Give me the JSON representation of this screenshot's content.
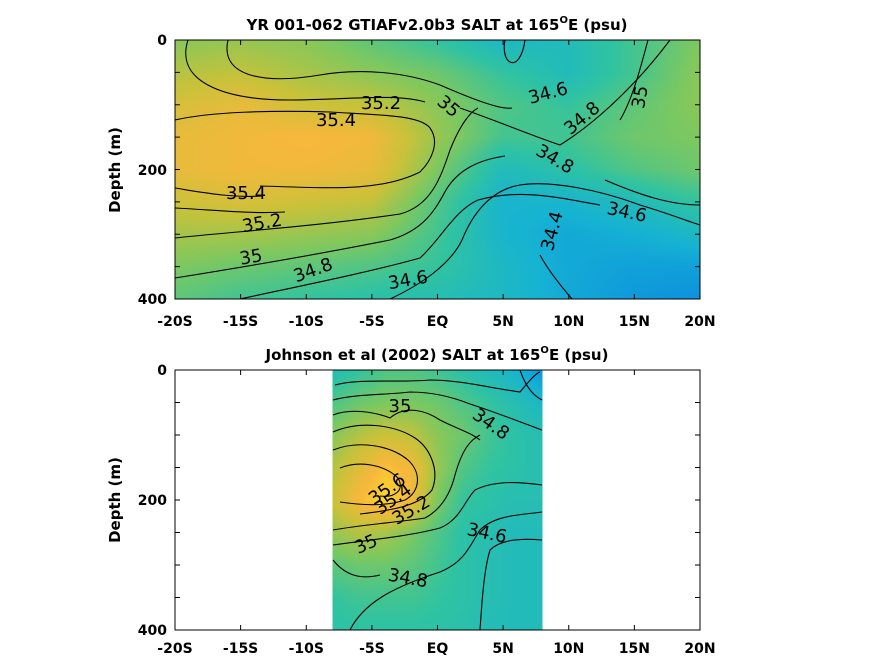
{
  "chart_data": [
    {
      "type": "heatmap",
      "title": "YR 001-062 GTIAFv2.0b3 SALT at 165",
      "title_sup": "O",
      "title_suffix": "E (psu)",
      "xlabel": "",
      "ylabel": "Depth (m)",
      "x_ticks": [
        "-20S",
        "-15S",
        "-10S",
        "-5S",
        "EQ",
        "5N",
        "10N",
        "15N",
        "20N"
      ],
      "y_ticks": [
        "0",
        "200",
        "400"
      ],
      "xlim": [
        -20,
        20
      ],
      "ylim": [
        0,
        400
      ],
      "data_extent": [
        -20,
        20
      ],
      "y_nodes": [
        0,
        50,
        100,
        150,
        200,
        250,
        300,
        350,
        400
      ],
      "x_nodes": [
        -20,
        -15,
        -10,
        -5,
        0,
        5,
        10,
        15,
        20
      ],
      "salinity": [
        [
          35.05,
          35.1,
          35.05,
          34.9,
          34.75,
          34.55,
          34.6,
          34.8,
          35.0
        ],
        [
          35.2,
          35.25,
          35.15,
          35.05,
          34.95,
          34.75,
          34.6,
          34.8,
          35.05
        ],
        [
          35.35,
          35.45,
          35.3,
          35.25,
          35.05,
          34.85,
          34.75,
          34.9,
          35.05
        ],
        [
          35.45,
          35.5,
          35.55,
          35.5,
          35.1,
          34.8,
          34.8,
          34.95,
          35.0
        ],
        [
          35.45,
          35.5,
          35.5,
          35.45,
          35.0,
          34.6,
          34.7,
          34.85,
          34.95
        ],
        [
          35.3,
          35.35,
          35.3,
          35.25,
          34.85,
          34.5,
          34.5,
          34.6,
          34.75
        ],
        [
          35.15,
          35.15,
          35.1,
          35.05,
          34.8,
          34.5,
          34.4,
          34.45,
          34.55
        ],
        [
          35.0,
          34.95,
          34.9,
          34.85,
          34.75,
          34.55,
          34.4,
          34.35,
          34.35
        ],
        [
          34.9,
          34.8,
          34.75,
          34.7,
          34.65,
          34.55,
          34.4,
          34.3,
          34.25
        ]
      ],
      "contour_labels": [
        "35.2",
        "35.4",
        "35",
        "34.6",
        "34.8",
        "35",
        "34.8",
        "35.4",
        "35.2",
        "34.6",
        "34.4",
        "35",
        "34.8",
        "34.6"
      ]
    },
    {
      "type": "heatmap",
      "title": "Johnson et al (2002) SALT at 165",
      "title_sup": "O",
      "title_suffix": "E (psu)",
      "xlabel": "",
      "ylabel": "Depth (m)",
      "x_ticks": [
        "-20S",
        "-15S",
        "-10S",
        "-5S",
        "EQ",
        "5N",
        "10N",
        "15N",
        "20N"
      ],
      "y_ticks": [
        "0",
        "200",
        "400"
      ],
      "xlim": [
        -20,
        20
      ],
      "ylim": [
        0,
        400
      ],
      "data_extent": [
        -8,
        8
      ],
      "y_nodes": [
        0,
        50,
        100,
        150,
        200,
        250,
        300,
        350,
        400
      ],
      "x_nodes": [
        -8,
        -6,
        -4,
        -2,
        0,
        2,
        4,
        6,
        8
      ],
      "salinity": [
        [
          34.65,
          34.75,
          34.85,
          34.85,
          34.8,
          34.7,
          34.6,
          34.5,
          34.3
        ],
        [
          34.85,
          34.95,
          35.0,
          35.0,
          34.95,
          34.85,
          34.75,
          34.65,
          34.55
        ],
        [
          35.05,
          35.2,
          35.3,
          35.25,
          35.05,
          34.95,
          34.8,
          34.7,
          34.65
        ],
        [
          35.2,
          35.4,
          35.6,
          35.5,
          35.1,
          34.85,
          34.75,
          34.7,
          34.65
        ],
        [
          35.3,
          35.55,
          35.75,
          35.5,
          35.0,
          34.75,
          34.7,
          34.65,
          34.65
        ],
        [
          35.1,
          35.2,
          35.15,
          35.0,
          34.85,
          34.7,
          34.65,
          34.6,
          34.6
        ],
        [
          34.9,
          34.95,
          34.95,
          34.9,
          34.8,
          34.7,
          34.65,
          34.6,
          34.6
        ],
        [
          34.75,
          34.8,
          34.8,
          34.8,
          34.75,
          34.7,
          34.65,
          34.6,
          34.6
        ],
        [
          34.7,
          34.72,
          34.72,
          34.72,
          34.7,
          34.68,
          34.62,
          34.6,
          34.6
        ]
      ],
      "contour_labels": [
        "35",
        "34.8",
        "35.6",
        "35.4",
        "35.2",
        "35",
        "34.6",
        "34.8"
      ]
    }
  ],
  "colormap": {
    "range": [
      34.2,
      35.8
    ],
    "stops": [
      "#0b8be0",
      "#16b3d3",
      "#30c3a2",
      "#7dc860",
      "#c8c23a",
      "#f7b83c",
      "#fbe028"
    ]
  }
}
